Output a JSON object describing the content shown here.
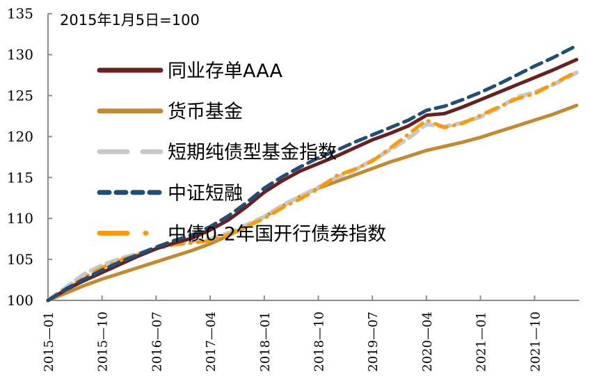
{
  "chart_data": {
    "type": "line",
    "title": "",
    "annotation": "2015年1月5日=100",
    "xlabel": "",
    "ylabel": "",
    "ylim": [
      100,
      135
    ],
    "yticks": [
      100,
      105,
      110,
      115,
      120,
      125,
      130,
      135
    ],
    "xticks": [
      "2015-01",
      "2015-10",
      "2016-07",
      "2017-04",
      "2018-01",
      "2018-10",
      "2019-07",
      "2020-04",
      "2021-01",
      "2021-10"
    ],
    "x_range": [
      "2015-01",
      "2022-05"
    ],
    "grid": false,
    "legend_position": "upper-left",
    "x": [
      "2015-01",
      "2015-04",
      "2015-07",
      "2015-10",
      "2016-01",
      "2016-04",
      "2016-07",
      "2016-10",
      "2017-01",
      "2017-04",
      "2017-07",
      "2017-10",
      "2018-01",
      "2018-04",
      "2018-07",
      "2018-10",
      "2019-01",
      "2019-04",
      "2019-07",
      "2019-10",
      "2020-01",
      "2020-04",
      "2020-07",
      "2020-10",
      "2021-01",
      "2021-04",
      "2021-07",
      "2021-10",
      "2022-01",
      "2022-05"
    ],
    "series": [
      {
        "name": "同业存单AAA",
        "color": "#6B1F1F",
        "style": "solid",
        "values": [
          100.0,
          101.3,
          102.4,
          103.4,
          104.4,
          105.4,
          106.3,
          107.0,
          107.6,
          108.6,
          109.8,
          111.4,
          113.2,
          114.6,
          115.8,
          116.7,
          117.6,
          118.6,
          119.6,
          120.4,
          121.3,
          122.6,
          122.8,
          123.6,
          124.5,
          125.4,
          126.3,
          127.2,
          128.1,
          129.4
        ]
      },
      {
        "name": "货币基金",
        "color": "#C48A30",
        "style": "solid",
        "values": [
          100.0,
          100.9,
          101.8,
          102.6,
          103.3,
          104.0,
          104.7,
          105.4,
          106.1,
          106.9,
          107.9,
          109.0,
          110.2,
          111.5,
          112.7,
          113.7,
          114.5,
          115.3,
          116.1,
          116.9,
          117.6,
          118.3,
          118.8,
          119.3,
          119.9,
          120.6,
          121.3,
          122.0,
          122.7,
          123.8
        ]
      },
      {
        "name": "短期纯债型基金指数",
        "color": "#C8C8C8",
        "style": "dash",
        "values": [
          100.0,
          101.6,
          103.2,
          104.3,
          105.1,
          105.7,
          106.4,
          106.9,
          107.2,
          107.5,
          108.2,
          109.2,
          110.2,
          111.6,
          112.7,
          113.8,
          115.0,
          115.9,
          117.1,
          118.4,
          119.8,
          121.5,
          121.2,
          121.7,
          122.4,
          123.5,
          124.8,
          125.4,
          126.3,
          127.8
        ]
      },
      {
        "name": "中证短融",
        "color": "#1F4E79",
        "style": "dash",
        "values": [
          100.0,
          101.4,
          102.6,
          103.7,
          104.7,
          105.6,
          106.5,
          107.3,
          108.0,
          109.0,
          110.3,
          111.9,
          113.7,
          115.1,
          116.3,
          117.4,
          118.3,
          119.3,
          120.2,
          121.1,
          122.0,
          123.2,
          123.7,
          124.5,
          125.4,
          126.4,
          127.5,
          128.6,
          129.6,
          131.1
        ]
      },
      {
        "name": "中债0-2年国开行债券指数",
        "color": "#FF9900",
        "style": "dash-dot",
        "values": [
          100.0,
          101.2,
          102.8,
          104.0,
          104.9,
          105.6,
          106.3,
          106.8,
          107.0,
          107.3,
          108.0,
          109.0,
          110.0,
          111.3,
          112.4,
          113.6,
          115.2,
          116.0,
          117.0,
          118.6,
          120.3,
          122.0,
          121.1,
          121.6,
          122.6,
          123.6,
          124.6,
          125.2,
          126.4,
          127.9
        ]
      }
    ]
  }
}
